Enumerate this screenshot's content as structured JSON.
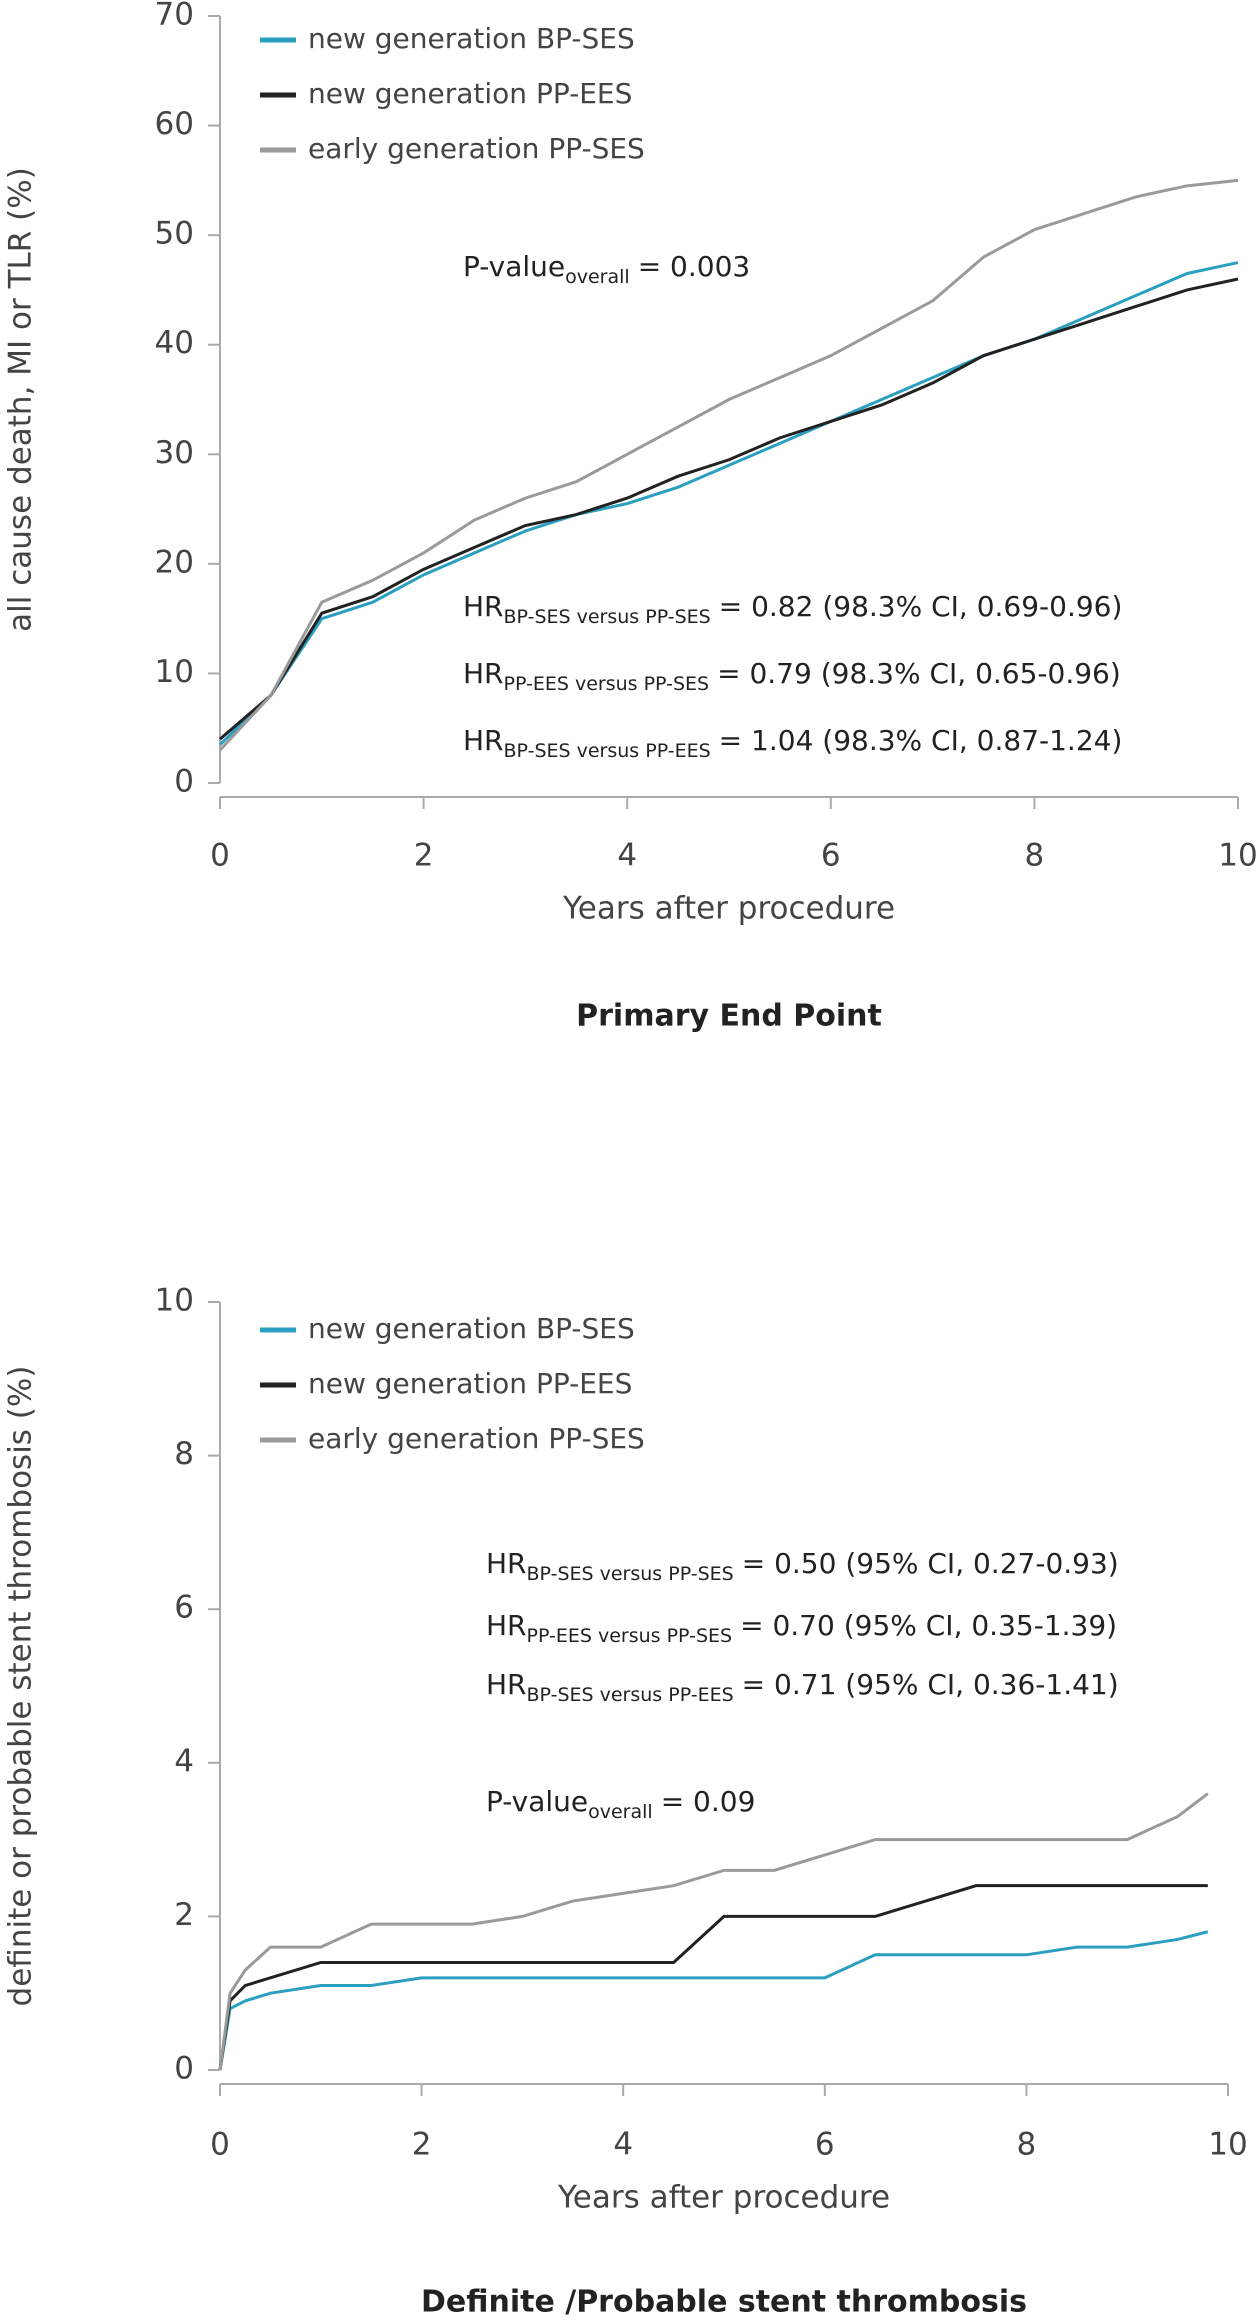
{
  "chart_data": [
    {
      "type": "line",
      "title": "Primary End Point",
      "x_label": "Years after procedure",
      "y_label": "all cause death, MI or TLR (%)",
      "xlim": [
        0,
        10
      ],
      "xticks": [
        0,
        2,
        4,
        6,
        8,
        10
      ],
      "ylim": [
        0,
        70
      ],
      "yticks": [
        0,
        10,
        20,
        30,
        40,
        50,
        60,
        70
      ],
      "grid": false,
      "x": [
        0,
        0.5,
        1,
        1.5,
        2,
        2.5,
        3,
        3.5,
        4,
        4.5,
        5,
        5.5,
        6,
        6.5,
        7,
        7.5,
        8,
        8.5,
        9,
        9.5,
        10
      ],
      "series": [
        {
          "name": "new generation BP-SES",
          "color": "#2a9fc0",
          "values": [
            3.5,
            8,
            15,
            16.5,
            19,
            21,
            23,
            24.5,
            25.5,
            27,
            29,
            31,
            33,
            35,
            37,
            39,
            40.5,
            42.5,
            44.5,
            46.5,
            47.5
          ]
        },
        {
          "name": "new generation PP-EES",
          "color": "#222222",
          "values": [
            4,
            8,
            15.5,
            17,
            19.5,
            21.5,
            23.5,
            24.5,
            26,
            28,
            29.5,
            31.5,
            33,
            34.5,
            36.5,
            39,
            40.5,
            42,
            43.5,
            45,
            46
          ]
        },
        {
          "name": "early generation PP-SES",
          "color": "#9a9a9a",
          "values": [
            3,
            8,
            16.5,
            18.5,
            21,
            24,
            26,
            27.5,
            30,
            32.5,
            35,
            37,
            39,
            41.5,
            44,
            48,
            50.5,
            52,
            53.5,
            54.5,
            55
          ]
        }
      ],
      "annotations": [
        {
          "main": "P-value",
          "sub": "overall",
          "rest": "= 0.003"
        },
        {
          "main": "HR",
          "sub": "BP-SES versus PP-SES",
          "rest": "= 0.82 (98.3% CI, 0.69-0.96)"
        },
        {
          "main": "HR",
          "sub": "PP-EES versus PP-SES",
          "rest": "= 0.79 (98.3% CI, 0.65-0.96)"
        },
        {
          "main": "HR",
          "sub": "BP-SES versus PP-EES",
          "rest": "= 1.04 (98.3% CI, 0.87-1.24)"
        }
      ]
    },
    {
      "type": "line",
      "title": "Definite /Probable stent thrombosis",
      "x_label": "Years after procedure",
      "y_label": "definite or probable stent thrombosis (%)",
      "xlim": [
        0,
        10
      ],
      "xticks": [
        0,
        2,
        4,
        6,
        8,
        10
      ],
      "ylim": [
        0,
        10
      ],
      "yticks": [
        0,
        2,
        4,
        6,
        8,
        10
      ],
      "grid": false,
      "x": [
        0,
        0.1,
        0.25,
        0.5,
        1,
        1.5,
        2,
        2.5,
        3,
        3.5,
        4,
        4.5,
        5,
        5.5,
        6,
        6.5,
        7,
        7.5,
        8,
        8.5,
        9,
        9.5,
        9.8
      ],
      "series": [
        {
          "name": "new generation BP-SES",
          "color": "#2a9fc0",
          "values": [
            0,
            0.8,
            0.9,
            1.0,
            1.1,
            1.1,
            1.2,
            1.2,
            1.2,
            1.2,
            1.2,
            1.2,
            1.2,
            1.2,
            1.2,
            1.5,
            1.5,
            1.5,
            1.5,
            1.6,
            1.6,
            1.7,
            1.8
          ]
        },
        {
          "name": "new generation PP-EES",
          "color": "#222222",
          "values": [
            0,
            0.9,
            1.1,
            1.2,
            1.4,
            1.4,
            1.4,
            1.4,
            1.4,
            1.4,
            1.4,
            1.4,
            2.0,
            2.0,
            2.0,
            2.0,
            2.2,
            2.4,
            2.4,
            2.4,
            2.4,
            2.4,
            2.4
          ]
        },
        {
          "name": "early generation PP-SES",
          "color": "#9a9a9a",
          "values": [
            0,
            1.0,
            1.3,
            1.6,
            1.6,
            1.9,
            1.9,
            1.9,
            2.0,
            2.2,
            2.3,
            2.4,
            2.6,
            2.6,
            2.8,
            3.0,
            3.0,
            3.0,
            3.0,
            3.0,
            3.0,
            3.3,
            3.6
          ]
        }
      ],
      "annotations": [
        {
          "main": "HR",
          "sub": "BP-SES versus PP-SES",
          "rest": "= 0.50 (95% CI, 0.27-0.93)"
        },
        {
          "main": "HR",
          "sub": "PP-EES versus PP-SES",
          "rest": "= 0.70 (95% CI, 0.35-1.39)"
        },
        {
          "main": "HR",
          "sub": "BP-SES versus PP-EES",
          "rest": "= 0.71 (95% CI, 0.36-1.41)"
        },
        {
          "main": "P-value",
          "sub": "overall",
          "rest": "= 0.09"
        }
      ]
    }
  ]
}
